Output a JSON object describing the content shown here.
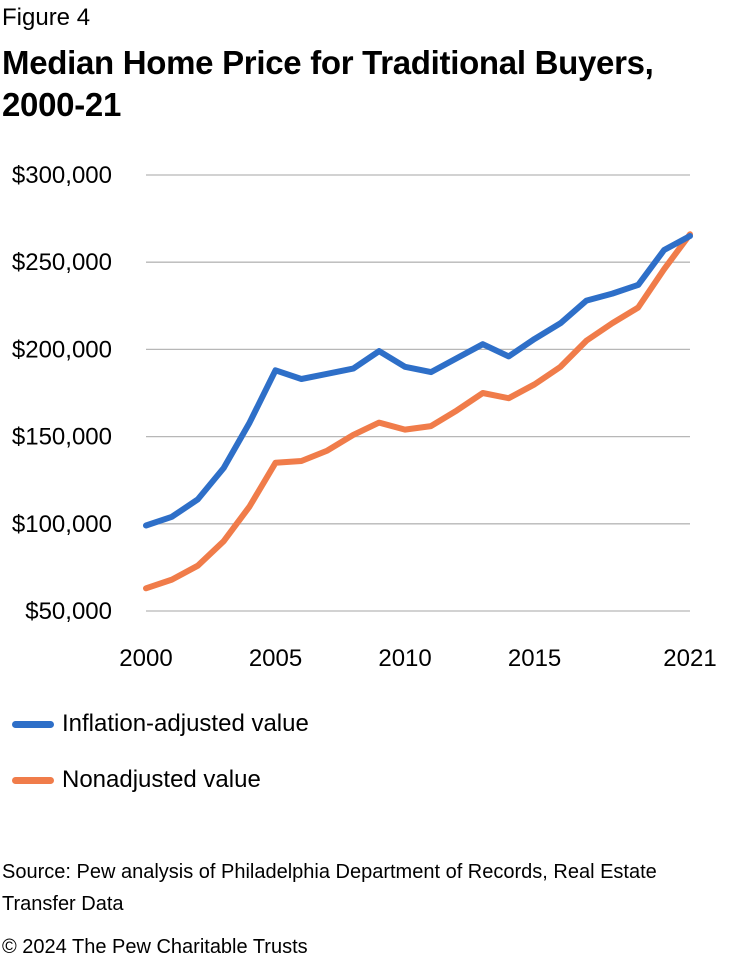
{
  "figure_label": "Figure 4",
  "title": "Median Home Price for Traditional Buyers, 2000-21",
  "source": "Source: Pew analysis of Philadelphia Department of Records, Real Estate Transfer Data",
  "copyright": "© 2024 The Pew Charitable Trusts",
  "chart_data": {
    "type": "line",
    "title": "Median Home Price for Traditional Buyers, 2000-21",
    "xlabel": "",
    "ylabel": "",
    "x": [
      2000,
      2001,
      2002,
      2003,
      2004,
      2005,
      2006,
      2007,
      2008,
      2009,
      2010,
      2011,
      2012,
      2013,
      2014,
      2015,
      2016,
      2017,
      2018,
      2019,
      2020,
      2021
    ],
    "x_ticks": [
      "2000",
      "2005",
      "2010",
      "2015",
      "2021"
    ],
    "x_tick_values": [
      2000,
      2005,
      2010,
      2015,
      2021
    ],
    "y_ticks": [
      "$50,000",
      "$100,000",
      "$150,000",
      "$200,000",
      "$250,000",
      "$300,000"
    ],
    "y_tick_values": [
      50000,
      100000,
      150000,
      200000,
      250000,
      300000
    ],
    "ylim": [
      50000,
      300000
    ],
    "xlim": [
      2000,
      2021
    ],
    "grid": true,
    "legend_position": "bottom",
    "series": [
      {
        "name": "Inflation-adjusted value",
        "color": "#2e6fc8",
        "values": [
          99000,
          104000,
          114000,
          132000,
          158000,
          188000,
          183000,
          186000,
          189000,
          199000,
          190000,
          187000,
          195000,
          203000,
          196000,
          206000,
          215000,
          228000,
          232000,
          237000,
          257000,
          265000
        ]
      },
      {
        "name": "Nonadjusted value",
        "color": "#f07c4a",
        "values": [
          63000,
          68000,
          76000,
          90000,
          110000,
          135000,
          136000,
          142000,
          151000,
          158000,
          154000,
          156000,
          165000,
          175000,
          172000,
          180000,
          190000,
          205000,
          215000,
          224000,
          246000,
          266000
        ]
      }
    ]
  }
}
